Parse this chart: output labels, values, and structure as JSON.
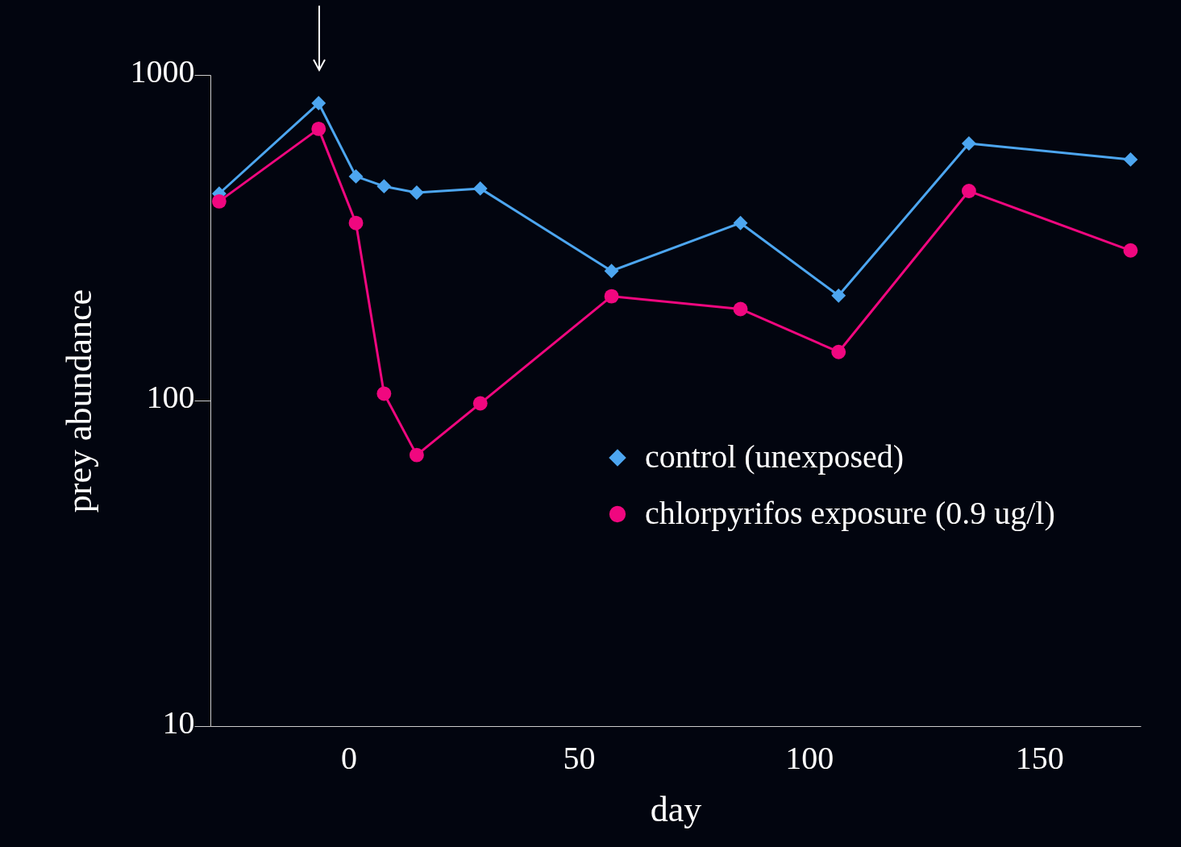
{
  "chart_data": {
    "type": "line",
    "xlabel": "day",
    "ylabel": "prey abundance",
    "log": "y",
    "grid": false,
    "legend": "right",
    "xlim": [
      -30,
      172
    ],
    "xticks": [
      0,
      50,
      100,
      150
    ],
    "ylim": [
      10,
      1000
    ],
    "yticks": [
      10,
      100,
      1000
    ],
    "series": [
      {
        "name": "control (unexposed)",
        "color": "#4da6f0",
        "marker": "diamond",
        "x": [
          -28.1,
          -6.5,
          1.6,
          7.7,
          14.8,
          28.6,
          57.1,
          85.1,
          106.4,
          134.7,
          169.8
        ],
        "values": [
          432,
          819,
          488,
          455,
          435,
          448,
          250,
          351,
          210,
          616,
          550
        ]
      },
      {
        "name": "chlorpyrifos exposure (0.9 ug/l)",
        "color": "#f0077f",
        "marker": "circle",
        "x": [
          -28.1,
          -6.5,
          1.6,
          7.7,
          14.8,
          28.6,
          57.1,
          85.1,
          106.4,
          134.7,
          169.8
        ],
        "values": [
          409,
          683,
          351,
          105,
          68,
          98,
          209,
          191,
          141,
          440,
          289
        ]
      }
    ]
  }
}
